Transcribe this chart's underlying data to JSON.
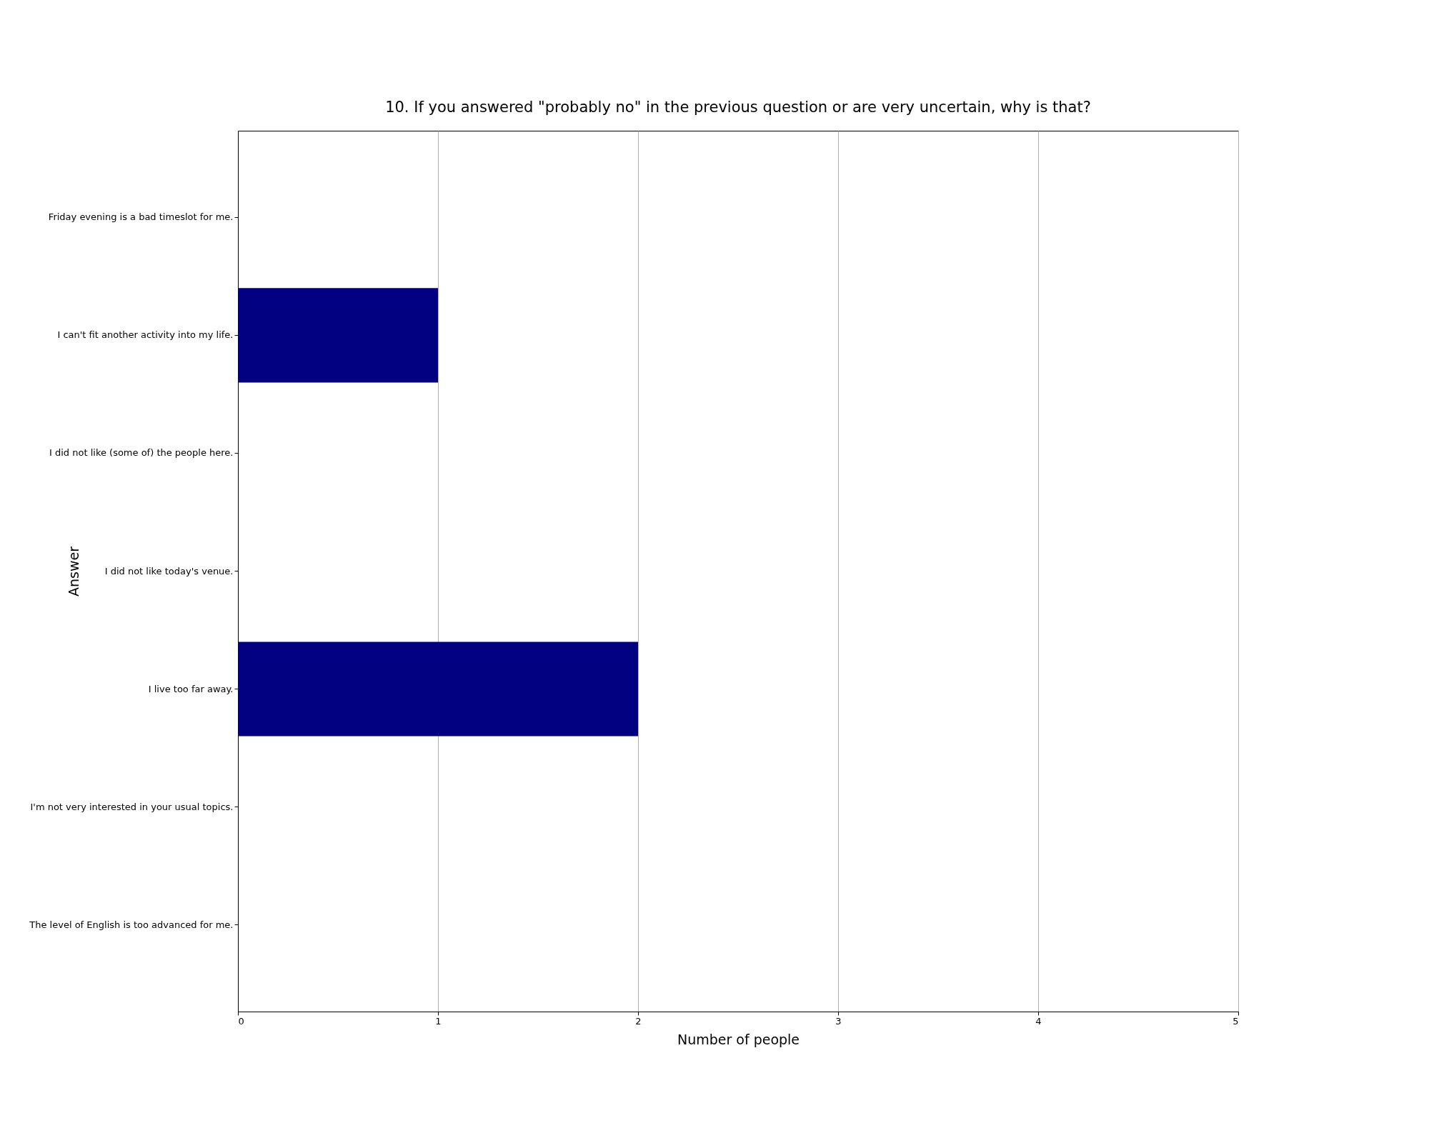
{
  "chart_data": {
    "type": "bar",
    "orientation": "horizontal",
    "title": "10. If you answered \"probably no\" in the previous question or are very uncertain, why is that?",
    "xlabel": "Number of people",
    "ylabel": "Answer",
    "categories": [
      "Friday evening is a bad timeslot for me.",
      "I can't fit another activity into my life.",
      "I did not like (some of) the people here.",
      "I did not like today's venue.",
      "I live too far away.",
      "I'm not very interested in your usual topics.",
      "The level of English is too advanced for me."
    ],
    "values": [
      0,
      1,
      0,
      0,
      2,
      0,
      0
    ],
    "color": "#000080",
    "xlim": [
      0,
      5
    ],
    "xticks": [
      0,
      1,
      2,
      3,
      4,
      5
    ],
    "grid": "x"
  }
}
